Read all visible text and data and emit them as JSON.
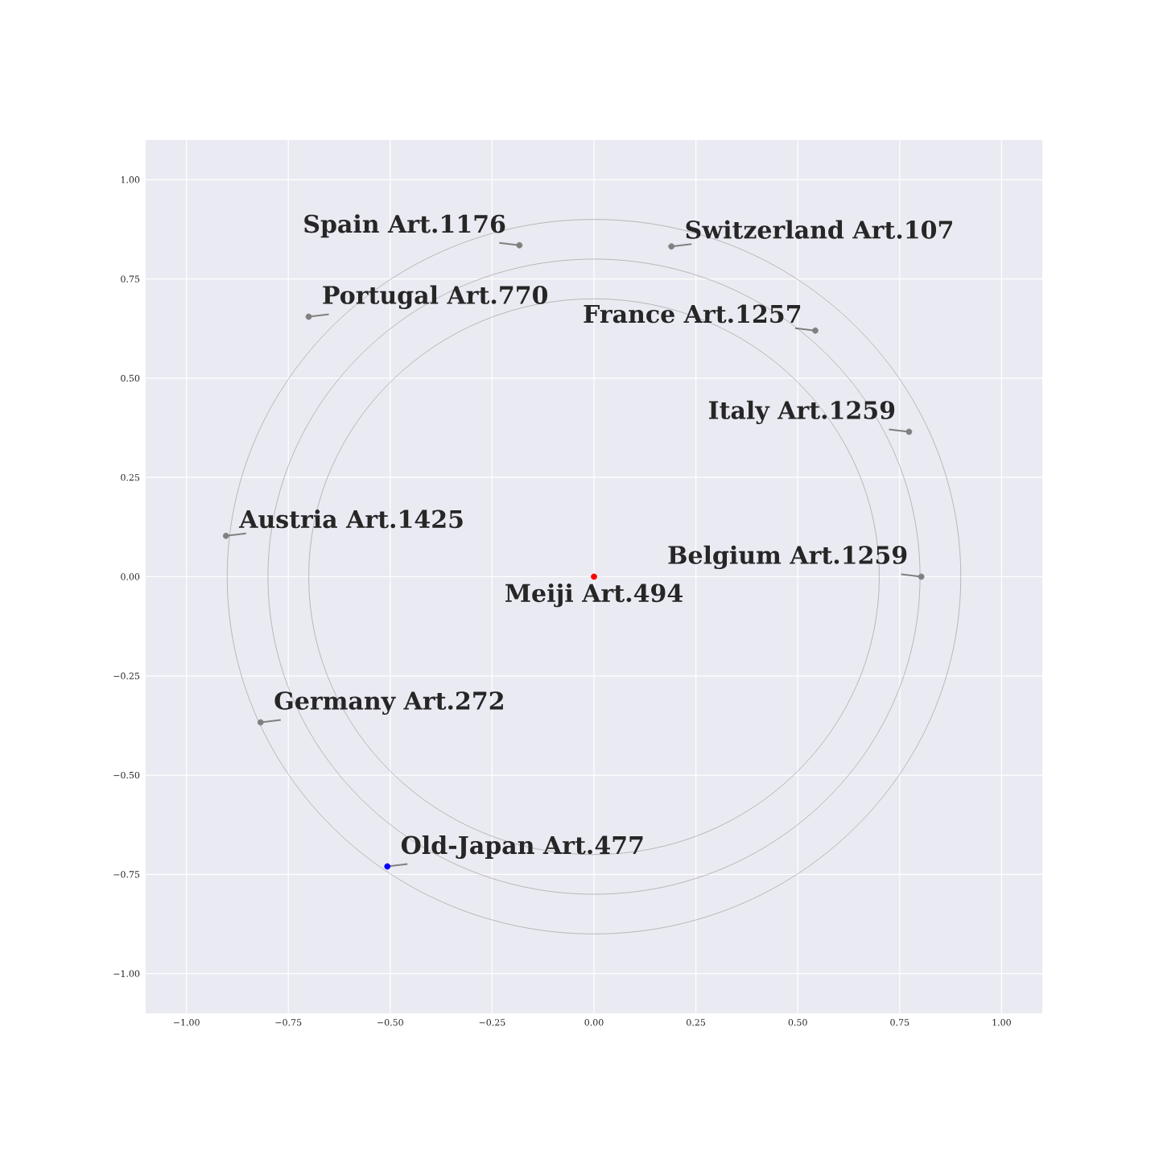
{
  "chart_data": {
    "type": "scatter",
    "xlim": [
      -1.1,
      1.1
    ],
    "ylim": [
      -1.1,
      1.1
    ],
    "xticks": [
      {
        "value": -1,
        "label": "−1.00"
      },
      {
        "value": -0.75,
        "label": "−0.75"
      },
      {
        "value": -0.5,
        "label": "−0.50"
      },
      {
        "value": -0.25,
        "label": "−0.25"
      },
      {
        "value": 0,
        "label": "0.00"
      },
      {
        "value": 0.25,
        "label": "0.25"
      },
      {
        "value": 0.5,
        "label": "0.50"
      },
      {
        "value": 0.75,
        "label": "0.75"
      },
      {
        "value": 1,
        "label": "1.00"
      }
    ],
    "yticks": [
      {
        "value": -1,
        "label": "−1.00"
      },
      {
        "value": -0.75,
        "label": "−0.75"
      },
      {
        "value": -0.5,
        "label": "−0.50"
      },
      {
        "value": -0.25,
        "label": "−0.25"
      },
      {
        "value": 0,
        "label": "0.00"
      },
      {
        "value": 0.25,
        "label": "0.25"
      },
      {
        "value": 0.5,
        "label": "0.50"
      },
      {
        "value": 0.75,
        "label": "0.75"
      },
      {
        "value": 1,
        "label": "1.00"
      }
    ],
    "grid": true,
    "marker": "circle",
    "series": [
      {
        "x": [
          0,
          -0.507,
          -0.183,
          0.19,
          -0.7,
          0.543,
          0.773,
          -0.903,
          0.803,
          -0.818
        ],
        "values": [
          0,
          -0.73,
          0.835,
          0.832,
          0.655,
          0.62,
          0.365,
          0.103,
          0,
          -0.367
        ],
        "colors": [
          "#ff0000",
          "#0000ff",
          "#808080",
          "#808080",
          "#808080",
          "#808080",
          "#808080",
          "#808080",
          "#808080",
          "#808080"
        ]
      }
    ],
    "annotations": [
      {
        "text": "Meiji Art.494",
        "x": 0,
        "y": 0
      },
      {
        "text": "Old-Japan Art.477",
        "x": -0.507,
        "y": -0.73
      },
      {
        "text": "Spain Art.1176",
        "x": -0.183,
        "y": 0.835
      },
      {
        "text": "Switzerland Art.107",
        "x": 0.19,
        "y": 0.832
      },
      {
        "text": "Portugal Art.770",
        "x": -0.7,
        "y": 0.655
      },
      {
        "text": "France Art.1257",
        "x": 0.543,
        "y": 0.62
      },
      {
        "text": "Italy Art.1259",
        "x": 0.773,
        "y": 0.365
      },
      {
        "text": "Austria Art.1425",
        "x": -0.903,
        "y": 0.103
      },
      {
        "text": "Belgium Art.1259",
        "x": 0.803,
        "y": 0
      },
      {
        "text": "Germany Art.272",
        "x": -0.818,
        "y": -0.367
      }
    ]
  }
}
